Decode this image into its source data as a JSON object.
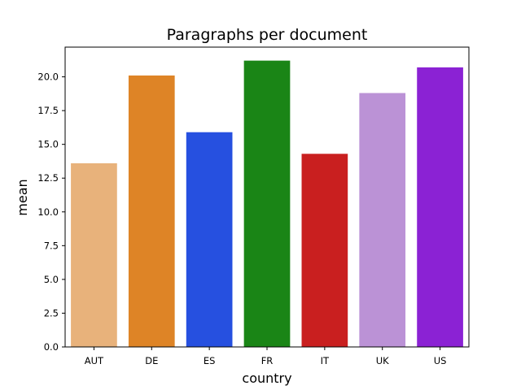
{
  "chart_data": {
    "type": "bar",
    "title": "Paragraphs per document",
    "xlabel": "country",
    "ylabel": "mean",
    "categories": [
      "AUT",
      "DE",
      "ES",
      "FR",
      "IT",
      "UK",
      "US"
    ],
    "values": [
      13.6,
      20.1,
      15.9,
      21.2,
      14.3,
      18.8,
      20.7
    ],
    "colors": [
      "#e8b27b",
      "#de8426",
      "#2650e0",
      "#1a8516",
      "#c91f1f",
      "#bb92d6",
      "#8b22d4"
    ],
    "ylim": [
      0,
      22.2
    ],
    "yticks": [
      "0.0",
      "2.5",
      "5.0",
      "7.5",
      "10.0",
      "12.5",
      "15.0",
      "17.5",
      "20.0"
    ],
    "grid": false,
    "legend": "none"
  }
}
